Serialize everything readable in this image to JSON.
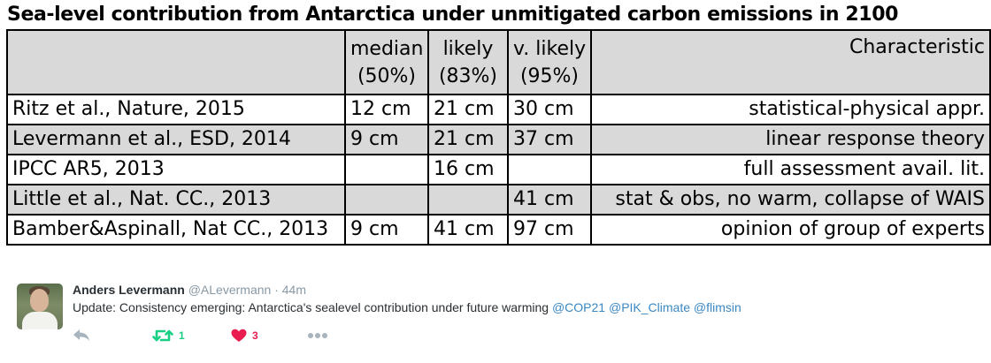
{
  "table": {
    "title": "Sea-level contribution from Antarctica under unmitigated carbon emissions in 2100",
    "header": {
      "source": "",
      "median": [
        "median",
        "(50%)"
      ],
      "likely": [
        "likely",
        "(83%)"
      ],
      "very_likely": [
        "v. likely",
        "(95%)"
      ],
      "characteristic": "Characteristic"
    },
    "rows": [
      {
        "source": "Ritz et al., Nature, 2015",
        "median": "12 cm",
        "likely": "21 cm",
        "very_likely": "30 cm",
        "characteristic": "statistical-physical appr.",
        "shaded": false
      },
      {
        "source": "Levermann et al., ESD, 2014",
        "median": "9 cm",
        "likely": "21 cm",
        "very_likely": "37 cm",
        "characteristic": "linear response theory",
        "shaded": true
      },
      {
        "source": "IPCC AR5, 2013",
        "median": "",
        "likely": "16 cm",
        "very_likely": "",
        "characteristic": "full assessment avail. lit.",
        "shaded": false
      },
      {
        "source": "Little et al., Nat. CC., 2013",
        "median": "",
        "likely": "",
        "very_likely": "41 cm",
        "characteristic": "stat & obs, no warm, collapse of WAIS",
        "shaded": true
      },
      {
        "source": "Bamber&Aspinall, Nat CC., 2013",
        "median": "9 cm",
        "likely": "41 cm",
        "very_likely": "97 cm",
        "characteristic": "opinion of group of experts",
        "shaded": false
      }
    ]
  },
  "tweet": {
    "author_name": "Anders Levermann",
    "author_handle": "@ALevermann",
    "separator": " · ",
    "time": "44m",
    "text": "Update: Consistency emerging: Antarctica's sealevel contribution under future warming",
    "mentions": [
      "@COP21",
      "@PIK_Climate",
      "@flimsin"
    ],
    "retweet_count": "1",
    "like_count": "3",
    "icons": {
      "reply": "reply-icon",
      "retweet": "retweet-icon",
      "like": "heart-icon",
      "more": "more-icon"
    },
    "colors": {
      "mention": "#3b88c3",
      "retweet": "#19cf86",
      "like": "#e81c4f",
      "muted": "#8899a6"
    }
  }
}
